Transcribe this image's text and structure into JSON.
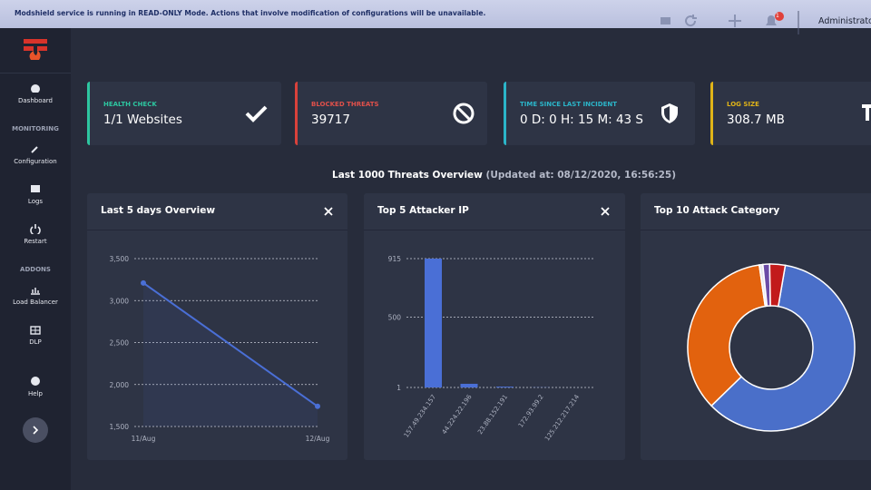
{
  "banner": {
    "text": "Modshield service is running in READ-ONLY Mode. Actions that involve modification of configurations will be unavailable."
  },
  "header": {
    "notifications": "1",
    "user": "Administrator"
  },
  "sidebar": {
    "items": [
      "Dashboard",
      "MONITORING",
      "Configuration",
      "Logs",
      "Restart",
      "ADDONS",
      "Load Balancer",
      "DLP",
      "Help"
    ]
  },
  "cards": [
    {
      "label": "HEALTH CHECK",
      "value": "1/1 Websites"
    },
    {
      "label": "BLOCKED THREATS",
      "value": "39717"
    },
    {
      "label": "TIME SINCE LAST INCIDENT",
      "value": "0 D: 0 H: 15 M: 43 S"
    },
    {
      "label": "LOG SIZE",
      "value": "308.7 MB"
    }
  ],
  "overview": {
    "title": "Last 1000 Threats Overview",
    "updated": "(Updated at: 08/12/2020, 16:56:25)"
  },
  "chart_data": [
    {
      "type": "line",
      "title": "Last 5 days Overview",
      "categories": [
        "11/Aug",
        "12/Aug"
      ],
      "values": [
        3210,
        1740
      ],
      "color": "#4a6fd6",
      "ylim": [
        1500,
        3500
      ],
      "yticks": [
        {
          "value": 1500,
          "label": "1,500"
        },
        {
          "value": 2000,
          "label": "2,000"
        },
        {
          "value": 2500,
          "label": "2,500"
        },
        {
          "value": 3000,
          "label": "3,000"
        },
        {
          "value": 3500,
          "label": "3,500"
        }
      ],
      "grid": true
    },
    {
      "type": "bar",
      "title": "Top 5 Attacker IP",
      "categories": [
        "157.49.234.157",
        "44.224.22.196",
        "23.88.152.191",
        "172.93.99.2",
        "125.212.217.214"
      ],
      "values": [
        915,
        27,
        7,
        2,
        1
      ],
      "color": "#4a6fd6",
      "ylim": [
        1,
        915
      ],
      "yticks": [
        1,
        500,
        915
      ],
      "grid": true
    },
    {
      "type": "pie",
      "title": "Top 10 Attack Category",
      "categories": [
        null,
        null,
        null,
        null,
        null
      ],
      "values": [
        60,
        35,
        0.7,
        1.3,
        3
      ],
      "colors": [
        "#4a6fc9",
        "#e2620e",
        "#e8e8ee",
        "#6b4ca6",
        "#c21b1b"
      ],
      "donut": true
    }
  ]
}
